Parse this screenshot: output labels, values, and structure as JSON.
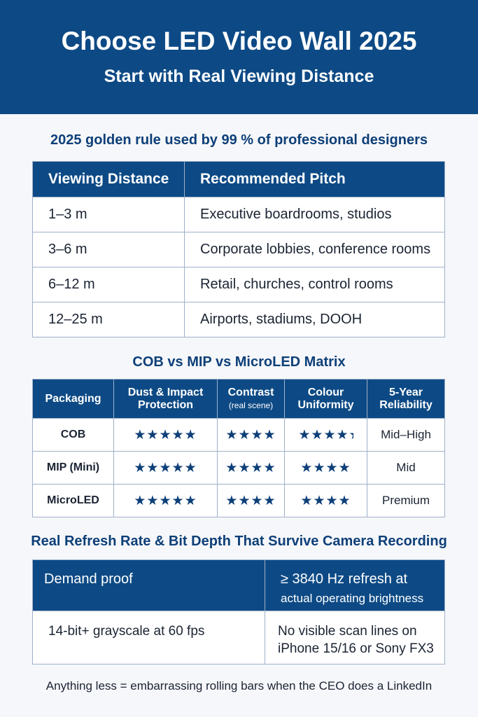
{
  "header": {
    "title": "Choose LED Video Wall 2025",
    "subtitle": "Start with Real Viewing Distance"
  },
  "section1": {
    "title": "2025 golden rule used by 99 % of professional designers",
    "columns": [
      "Viewing Distance",
      "Recommended Pitch"
    ],
    "rows": [
      [
        "1–3 m",
        "Executive boardrooms, studios"
      ],
      [
        "3–6 m",
        "Corporate lobbies, conference rooms"
      ],
      [
        "6–12 m",
        "Retail, churches, control rooms"
      ],
      [
        "12–25 m",
        "Airports, stadiums, DOOH"
      ]
    ]
  },
  "section2": {
    "title": "COB vs MIP vs MicroLED Matrix",
    "columns": [
      "Packaging",
      "Dust & Impact",
      "Protection",
      "Contrast",
      "(real scene)",
      "Colour",
      "Uniformity",
      "5-Year",
      "Reliability"
    ],
    "rows": [
      {
        "name": "COB",
        "dust": 5,
        "contrast": 4,
        "uniformity": 4.5,
        "reliability": "Mid–High"
      },
      {
        "name": "MIP (Mini)",
        "dust": 5,
        "contrast": 4,
        "uniformity": 4,
        "reliability": "Mid"
      },
      {
        "name": "MicroLED",
        "dust": 5,
        "contrast": 4,
        "uniformity": 4,
        "reliability": "Premium"
      }
    ],
    "star_color": "#0d3f78"
  },
  "section3": {
    "title": "Real Refresh Rate & Bit Depth That Survive Camera Recording",
    "header": [
      "Demand proof",
      "≥ 3840 Hz refresh at",
      "actual operating brightness"
    ],
    "row": [
      "14-bit+ grayscale at 60 fps",
      "No visible scan lines on",
      "iPhone 15/16 or Sony FX3"
    ]
  },
  "footer": "Anything less = embarrassing rolling bars when the CEO does a LinkedIn",
  "colors": {
    "brand": "#0d4a85"
  }
}
